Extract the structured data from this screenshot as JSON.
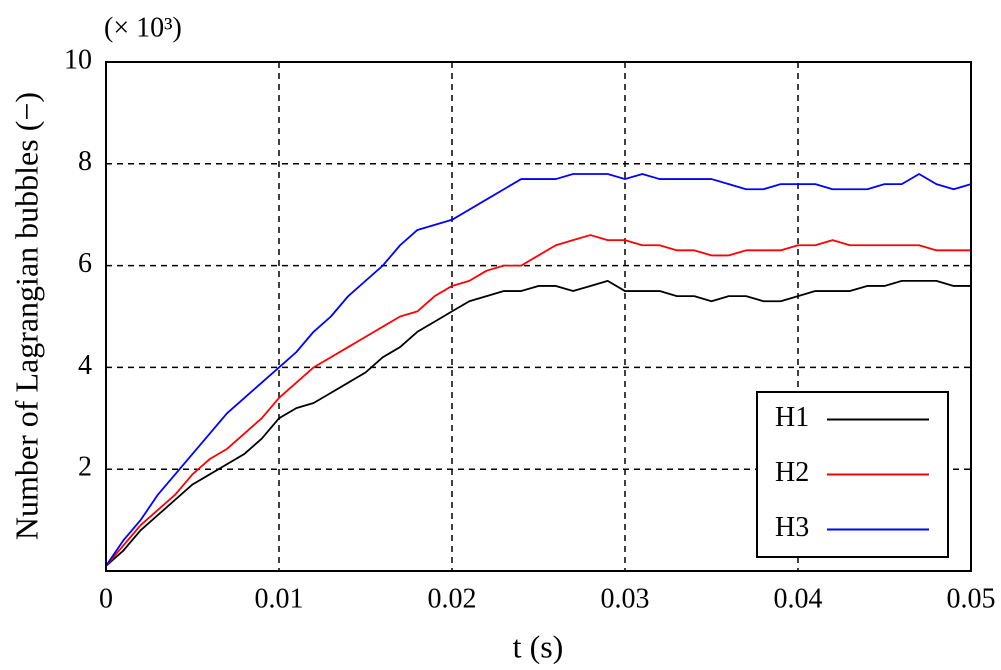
{
  "chart_data": {
    "type": "line",
    "annotation": "(× 10³)",
    "y_label": "Number of Lagrangian bubbles (−)",
    "x_label": "t (s)",
    "x": [
      0,
      0.001,
      0.002,
      0.003,
      0.004,
      0.005,
      0.006,
      0.007,
      0.008,
      0.009,
      0.01,
      0.011,
      0.012,
      0.013,
      0.014,
      0.015,
      0.016,
      0.017,
      0.018,
      0.019,
      0.02,
      0.021,
      0.022,
      0.023,
      0.024,
      0.025,
      0.026,
      0.027,
      0.028,
      0.029,
      0.03,
      0.031,
      0.032,
      0.033,
      0.034,
      0.035,
      0.036,
      0.037,
      0.038,
      0.039,
      0.04,
      0.041,
      0.042,
      0.043,
      0.044,
      0.045,
      0.046,
      0.047,
      0.048,
      0.049,
      0.05
    ],
    "series": [
      {
        "name": "H1",
        "color": "#000000",
        "values": [
          0.1,
          0.4,
          0.8,
          1.1,
          1.4,
          1.7,
          1.9,
          2.1,
          2.3,
          2.6,
          3.0,
          3.2,
          3.3,
          3.5,
          3.7,
          3.9,
          4.2,
          4.4,
          4.7,
          4.9,
          5.1,
          5.3,
          5.4,
          5.5,
          5.5,
          5.6,
          5.6,
          5.5,
          5.6,
          5.7,
          5.5,
          5.5,
          5.5,
          5.4,
          5.4,
          5.3,
          5.4,
          5.4,
          5.3,
          5.3,
          5.4,
          5.5,
          5.5,
          5.5,
          5.6,
          5.6,
          5.7,
          5.7,
          5.7,
          5.6,
          5.6
        ]
      },
      {
        "name": "H2",
        "color": "#ff0000",
        "values": [
          0.1,
          0.5,
          0.9,
          1.2,
          1.5,
          1.9,
          2.2,
          2.4,
          2.7,
          3.0,
          3.4,
          3.7,
          4.0,
          4.2,
          4.4,
          4.6,
          4.8,
          5.0,
          5.1,
          5.4,
          5.6,
          5.7,
          5.9,
          6.0,
          6.0,
          6.2,
          6.4,
          6.5,
          6.6,
          6.5,
          6.5,
          6.4,
          6.4,
          6.3,
          6.3,
          6.2,
          6.2,
          6.3,
          6.3,
          6.3,
          6.4,
          6.4,
          6.5,
          6.4,
          6.4,
          6.4,
          6.4,
          6.4,
          6.3,
          6.3,
          6.3
        ]
      },
      {
        "name": "H3",
        "color": "#0000ff",
        "values": [
          0.1,
          0.6,
          1.0,
          1.5,
          1.9,
          2.3,
          2.7,
          3.1,
          3.4,
          3.7,
          4.0,
          4.3,
          4.7,
          5.0,
          5.4,
          5.7,
          6.0,
          6.4,
          6.7,
          6.8,
          6.9,
          7.1,
          7.3,
          7.5,
          7.7,
          7.7,
          7.7,
          7.8,
          7.8,
          7.8,
          7.7,
          7.8,
          7.7,
          7.7,
          7.7,
          7.7,
          7.6,
          7.5,
          7.5,
          7.6,
          7.6,
          7.6,
          7.5,
          7.5,
          7.5,
          7.6,
          7.6,
          7.8,
          7.6,
          7.5,
          7.6
        ]
      }
    ],
    "xlim": [
      0,
      0.05
    ],
    "xticks": [
      0,
      0.01,
      0.02,
      0.03,
      0.04,
      0.05
    ],
    "ylim": [
      0,
      10
    ],
    "yticks": [
      2,
      4,
      6,
      8,
      10
    ],
    "grid": true,
    "legend": "lower right"
  }
}
